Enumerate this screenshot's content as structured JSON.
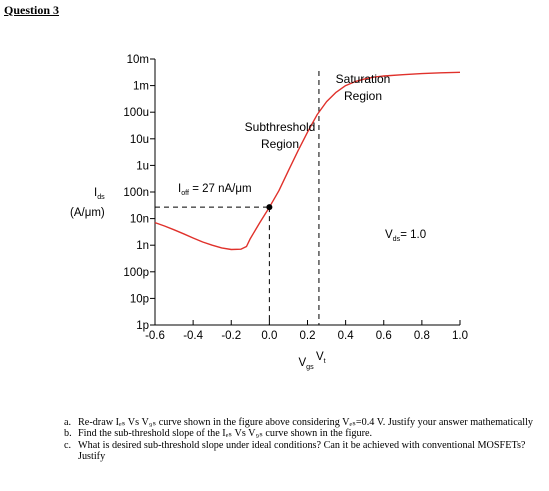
{
  "heading": "Question 3",
  "chart_data": {
    "type": "line",
    "x_ticks": [
      "-0.6",
      "-0.4",
      "-0.2",
      "0.0",
      "0.2",
      "0.4",
      "0.6",
      "0.8",
      "1.0"
    ],
    "x_tick_values": [
      -0.6,
      -0.4,
      -0.2,
      0.0,
      0.2,
      0.4,
      0.6,
      0.8,
      1.0
    ],
    "xlim": [
      -0.6,
      1.0
    ],
    "y_ticks": [
      "10m",
      "1m",
      "100u",
      "10u",
      "1u",
      "100n",
      "10n",
      "1n",
      "100p",
      "10p",
      "1p"
    ],
    "y_tick_exponents": [
      -2,
      -3,
      -4,
      -5,
      -6,
      -7,
      -8,
      -9,
      -10,
      -11,
      -12
    ],
    "ylog": true,
    "ylim_exponent": [
      -12,
      -2
    ],
    "ylabel_main": "I",
    "ylabel_sub": "ds",
    "ylabel_units": "(A/μm)",
    "xlabel_main": "V",
    "xlabel_sub": "gs",
    "vt_main": "V",
    "vt_sub": "t",
    "vt_value": 0.26,
    "off_label_main": "I",
    "off_label_sub": "off",
    "off_label_rest": " = 27 nA/μm",
    "off_point": [
      0.0,
      -7.57
    ],
    "vds_label_main": "V",
    "vds_label_sub": "ds",
    "vds_label_rest": "= 1.0",
    "region_subthreshold": [
      "Subthreshold",
      "Region"
    ],
    "region_saturation": [
      "Saturation",
      "Region"
    ],
    "curve_color": "#e0312b",
    "series": [
      {
        "x": [
          -0.6,
          -0.55,
          -0.5,
          -0.45,
          -0.4,
          -0.35,
          -0.3,
          -0.25,
          -0.2,
          -0.15,
          -0.12,
          -0.1,
          -0.05,
          0.0,
          0.05,
          0.1,
          0.15,
          0.2,
          0.25,
          0.3,
          0.35,
          0.4,
          0.45,
          0.5,
          0.55,
          0.6,
          0.7,
          0.8,
          0.9,
          1.0
        ],
        "y_exponent": [
          -8.15,
          -8.28,
          -8.42,
          -8.57,
          -8.73,
          -8.88,
          -9.0,
          -9.1,
          -9.16,
          -9.15,
          -9.05,
          -8.75,
          -8.15,
          -7.57,
          -6.95,
          -6.2,
          -5.45,
          -4.75,
          -4.1,
          -3.6,
          -3.25,
          -3.0,
          -2.85,
          -2.75,
          -2.68,
          -2.64,
          -2.59,
          -2.55,
          -2.52,
          -2.5
        ]
      }
    ]
  },
  "questions": [
    {
      "marker": "a.",
      "text": "Re-draw Iₑₛ Vs V₉ₛ curve shown in the figure above considering Vₑₛ=0.4 V. Justify your answer mathematically"
    },
    {
      "marker": "b.",
      "text": "Find the sub-threshold slope of the Iₑₛ Vs V₉ₛ curve shown in the figure."
    },
    {
      "marker": "c.",
      "text": "What is desired sub-threshold slope under ideal conditions? Can it be achieved with conventional MOSFETs? Justify"
    }
  ]
}
